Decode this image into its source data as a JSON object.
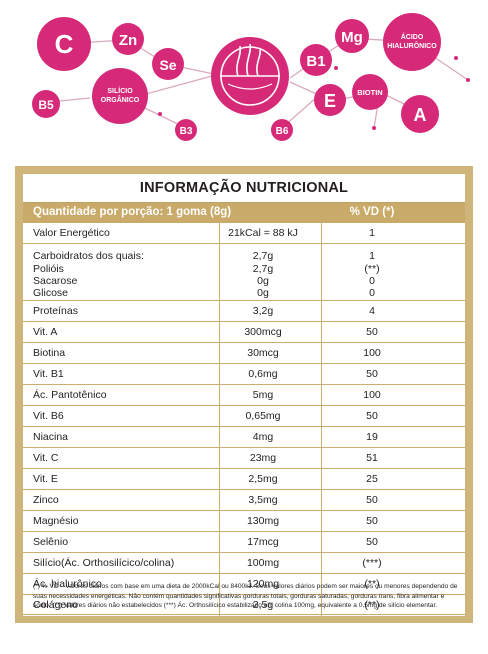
{
  "header": {
    "bubbles": {
      "c": "C",
      "zn": "Zn",
      "se": "Se",
      "silicio": [
        "SILÍCIO",
        "ORGÂNICO"
      ],
      "b5": "B5",
      "b3": "B3",
      "b6": "B6",
      "b1": "B1",
      "mg": "Mg",
      "acido": [
        "ÁCIDO",
        "HIALURÔNICO"
      ],
      "e": "E",
      "biotin": "BIOTIN",
      "a": "A"
    },
    "colors": {
      "magenta": "#d62a78",
      "gold": "#c9aa68"
    },
    "center_icon": "hair-strands-icon"
  },
  "panel": {
    "title": "INFORMAÇÃO NUTRICIONAL",
    "portion_label": "Quantidade por porção: 1 goma (8g)",
    "vd_label": "% VD (*)",
    "rows": [
      {
        "name": "Valor Energético",
        "amount": "21kCal = 88 kJ",
        "vd": "1"
      },
      {
        "name": "Carboidratos dos quais:",
        "amount": "2,7g",
        "vd": "1",
        "subs": [
          {
            "name": "Polióis",
            "amount": "2,7g",
            "vd": "(**)"
          },
          {
            "name": "Sacarose",
            "amount": "0g",
            "vd": "0"
          },
          {
            "name": "Glicose",
            "amount": "0g",
            "vd": "0"
          }
        ]
      },
      {
        "name": "Proteínas",
        "amount": "3,2g",
        "vd": "4"
      },
      {
        "name": "Vit. A",
        "amount": "300mcg",
        "vd": "50"
      },
      {
        "name": "Biotina",
        "amount": "30mcg",
        "vd": "100"
      },
      {
        "name": "Vit. B1",
        "amount": "0,6mg",
        "vd": "50"
      },
      {
        "name": "Ác. Pantotênico",
        "amount": "5mg",
        "vd": "100"
      },
      {
        "name": "Vit. B6",
        "amount": "0,65mg",
        "vd": "50"
      },
      {
        "name": "Niacina",
        "amount": "4mg",
        "vd": "19"
      },
      {
        "name": "Vit. C",
        "amount": "23mg",
        "vd": "51"
      },
      {
        "name": "Vit. E",
        "amount": "2,5mg",
        "vd": "25"
      },
      {
        "name": "Zinco",
        "amount": "3,5mg",
        "vd": "50"
      },
      {
        "name": "Magnésio",
        "amount": "130mg",
        "vd": "50"
      },
      {
        "name": "Selênio",
        "amount": "17mcg",
        "vd": "50"
      },
      {
        "name": "Silício(Ác. Orthosilícico/colina)",
        "amount": "100mg",
        "vd": "(***)"
      },
      {
        "name": "Ác. hialurônico",
        "amount": "120mg",
        "vd": "(**)"
      },
      {
        "name": "Colágeno",
        "amount": "2,5g",
        "vd": "(**)"
      }
    ],
    "footnote": "(*) % VD – valores diários com base em uma dieta de 2000kCal ou 8400kJ. Seus valores diários podem ser maiores ou menores dependendo de suas necessidades energéticas. Não contém quantidades significativas gorduras totais, gorduras saturadas, gorduras trans, fibra alimentar e sódio. (**) Valores diários não estabelecidos (***) Ác. Orthosilícico estabilizado em colina 100mg, equivalente a 0,5mg de silício elementar."
  }
}
